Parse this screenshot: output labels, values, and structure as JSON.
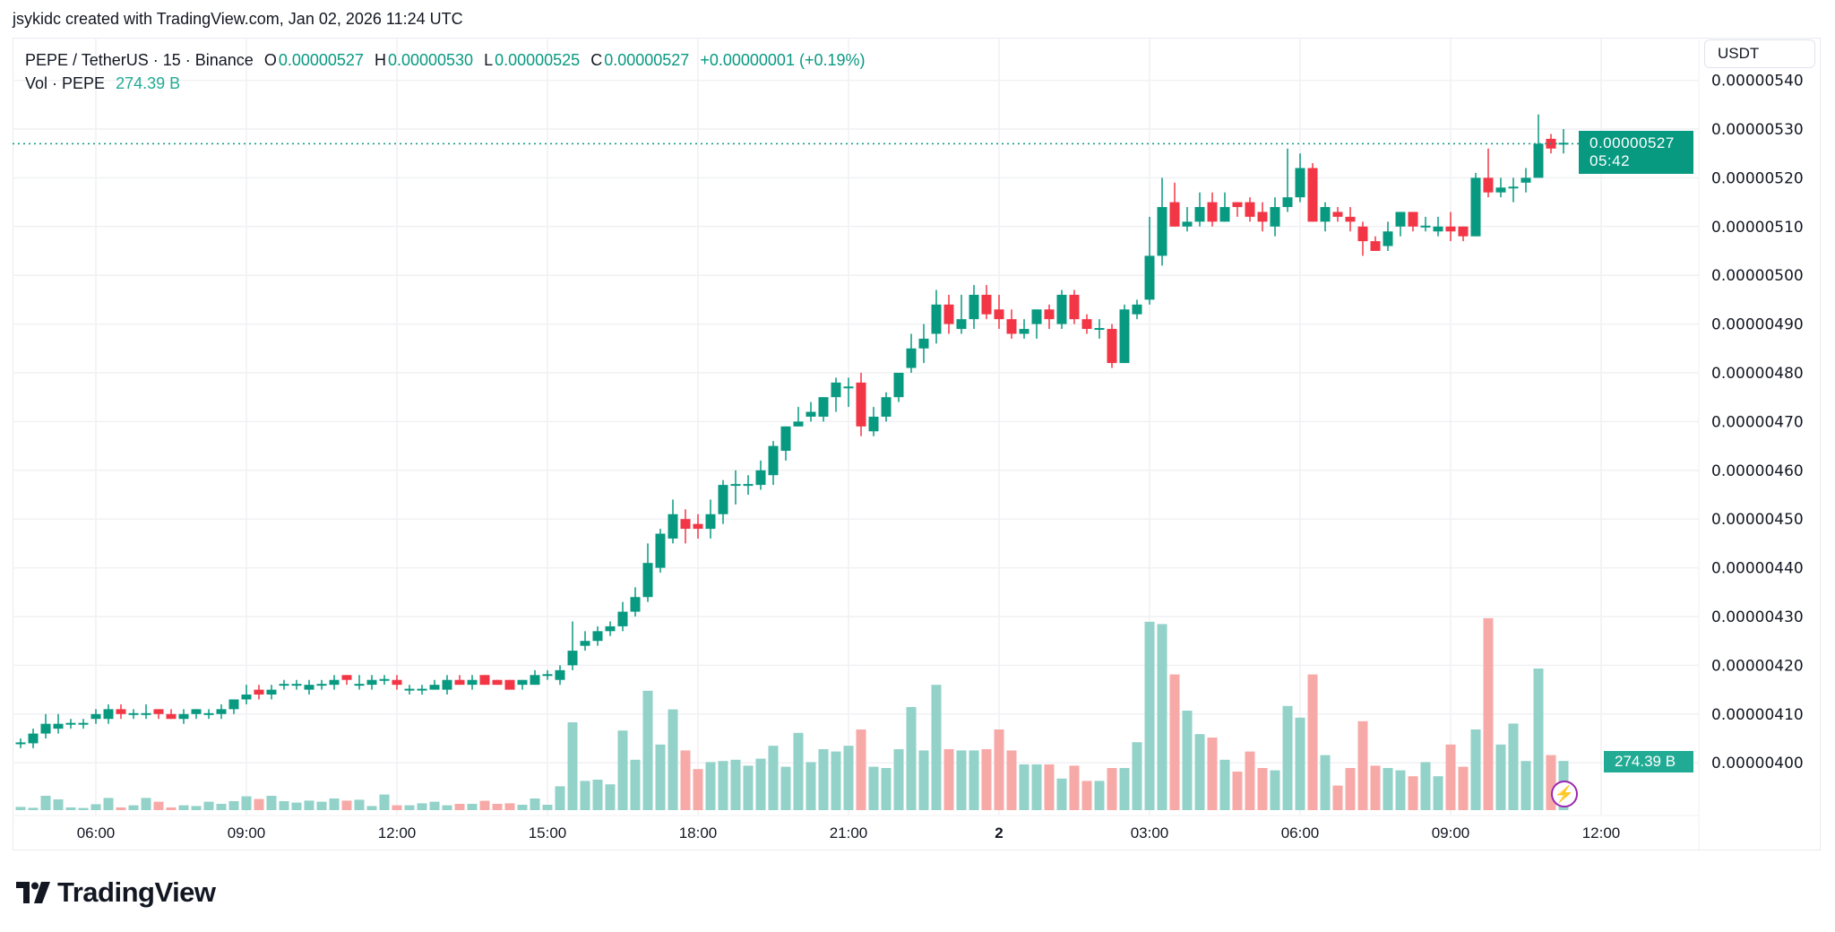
{
  "caption": "jsykidc created with TradingView.com, Jan 02, 2026 11:24 UTC",
  "legend": {
    "symbol": "PEPE / TetherUS · 15 · Binance",
    "open_label": "O",
    "open": "0.00000527",
    "high_label": "H",
    "high": "0.00000530",
    "low_label": "L",
    "low": "0.00000525",
    "close_label": "C",
    "close": "0.00000527",
    "change": "+0.00000001 (+0.19%)",
    "vol_label": "Vol · PEPE",
    "vol_value": "274.39 B"
  },
  "currency_button": "USDT",
  "last_price_label": {
    "price": "0.00000527",
    "countdown": "05:42"
  },
  "volume_label": "274.39 B",
  "brand": "TradingView",
  "colors": {
    "up": "#089981",
    "down": "#f23645",
    "vol_up": "#92d2c9",
    "vol_down": "#f7a9a7",
    "grid": "#f0f1f4",
    "accent": "#9c27b0"
  },
  "icons": {
    "replay": "lightning-icon"
  },
  "chart_data": {
    "type": "candlestick",
    "interval": "15",
    "y_ticks": [
      "0.00000540",
      "0.00000530",
      "0.00000520",
      "0.00000510",
      "0.00000500",
      "0.00000490",
      "0.00000480",
      "0.00000470",
      "0.00000460",
      "0.00000450",
      "0.00000440",
      "0.00000430",
      "0.00000420",
      "0.00000410",
      "0.00000400"
    ],
    "x_ticks": [
      {
        "label": "06:00",
        "time": "01 06:00"
      },
      {
        "label": "09:00",
        "time": "01 09:00"
      },
      {
        "label": "12:00",
        "time": "01 12:00"
      },
      {
        "label": "15:00",
        "time": "01 15:00"
      },
      {
        "label": "18:00",
        "time": "01 18:00"
      },
      {
        "label": "21:00",
        "time": "01 21:00"
      },
      {
        "label": "2",
        "time": "02 00:00",
        "bold": true
      },
      {
        "label": "03:00",
        "time": "02 03:00"
      },
      {
        "label": "06:00",
        "time": "02 06:00"
      },
      {
        "label": "09:00",
        "time": "02 09:00"
      },
      {
        "label": "12:00",
        "time": "02 12:00"
      }
    ],
    "ylim": [
      3.95e-06,
      5.4e-06
    ],
    "grid": true,
    "last_price": 5.27e-06,
    "volume_unit": "B",
    "columns": [
      "time",
      "open",
      "high",
      "low",
      "close",
      "volume"
    ],
    "candles": [
      [
        "01 04:30",
        4.04e-06,
        4.05e-06,
        4.03e-06,
        4.04e-06,
        18
      ],
      [
        "01 04:45",
        4.04e-06,
        4.07e-06,
        4.03e-06,
        4.06e-06,
        13
      ],
      [
        "01 05:00",
        4.06e-06,
        4.1e-06,
        4.05e-06,
        4.08e-06,
        80
      ],
      [
        "01 05:15",
        4.07e-06,
        4.1e-06,
        4.06e-06,
        4.08e-06,
        60
      ],
      [
        "01 05:30",
        4.08e-06,
        4.09e-06,
        4.07e-06,
        4.08e-06,
        15
      ],
      [
        "01 05:45",
        4.08e-06,
        4.09e-06,
        4.07e-06,
        4.08e-06,
        12
      ],
      [
        "01 06:00",
        4.09e-06,
        4.11e-06,
        4.08e-06,
        4.1e-06,
        33
      ],
      [
        "01 06:15",
        4.09e-06,
        4.12e-06,
        4.08e-06,
        4.11e-06,
        68
      ],
      [
        "01 06:30",
        4.11e-06,
        4.12e-06,
        4.09e-06,
        4.1e-06,
        15
      ],
      [
        "01 06:45",
        4.1e-06,
        4.11e-06,
        4.09e-06,
        4.1e-06,
        27
      ],
      [
        "01 07:00",
        4.1e-06,
        4.12e-06,
        4.09e-06,
        4.1e-06,
        68
      ],
      [
        "01 07:15",
        4.11e-06,
        4.11e-06,
        4.09e-06,
        4.1e-06,
        47
      ],
      [
        "01 07:30",
        4.1e-06,
        4.11e-06,
        4.09e-06,
        4.09e-06,
        15
      ],
      [
        "01 07:45",
        4.09e-06,
        4.11e-06,
        4.08e-06,
        4.1e-06,
        27
      ],
      [
        "01 08:00",
        4.1e-06,
        4.11e-06,
        4.09e-06,
        4.11e-06,
        23
      ],
      [
        "01 08:15",
        4.1e-06,
        4.11e-06,
        4.09e-06,
        4.1e-06,
        47
      ],
      [
        "01 08:30",
        4.1e-06,
        4.12e-06,
        4.09e-06,
        4.11e-06,
        35
      ],
      [
        "01 08:45",
        4.11e-06,
        4.13e-06,
        4.1e-06,
        4.13e-06,
        50
      ],
      [
        "01 09:00",
        4.13e-06,
        4.16e-06,
        4.12e-06,
        4.14e-06,
        77
      ],
      [
        "01 09:15",
        4.15e-06,
        4.16e-06,
        4.13e-06,
        4.14e-06,
        62
      ],
      [
        "01 09:30",
        4.14e-06,
        4.16e-06,
        4.13e-06,
        4.15e-06,
        80
      ],
      [
        "01 09:45",
        4.16e-06,
        4.17e-06,
        4.15e-06,
        4.16e-06,
        50
      ],
      [
        "01 10:00",
        4.16e-06,
        4.17e-06,
        4.15e-06,
        4.16e-06,
        42
      ],
      [
        "01 10:15",
        4.15e-06,
        4.17e-06,
        4.14e-06,
        4.16e-06,
        53
      ],
      [
        "01 10:30",
        4.16e-06,
        4.17e-06,
        4.15e-06,
        4.16e-06,
        47
      ],
      [
        "01 10:45",
        4.16e-06,
        4.18e-06,
        4.15e-06,
        4.17e-06,
        65
      ],
      [
        "01 11:00",
        4.18e-06,
        4.18e-06,
        4.16e-06,
        4.17e-06,
        53
      ],
      [
        "01 11:15",
        4.16e-06,
        4.18e-06,
        4.15e-06,
        4.16e-06,
        58
      ],
      [
        "01 11:30",
        4.16e-06,
        4.18e-06,
        4.15e-06,
        4.17e-06,
        23
      ],
      [
        "01 11:45",
        4.17e-06,
        4.18e-06,
        4.16e-06,
        4.17e-06,
        87
      ],
      [
        "01 12:00",
        4.17e-06,
        4.18e-06,
        4.15e-06,
        4.16e-06,
        27
      ],
      [
        "01 12:15",
        4.15e-06,
        4.16e-06,
        4.14e-06,
        4.15e-06,
        27
      ],
      [
        "01 12:30",
        4.15e-06,
        4.16e-06,
        4.14e-06,
        4.15e-06,
        38
      ],
      [
        "01 12:45",
        4.15e-06,
        4.17e-06,
        4.15e-06,
        4.16e-06,
        47
      ],
      [
        "01 13:00",
        4.15e-06,
        4.18e-06,
        4.14e-06,
        4.17e-06,
        27
      ],
      [
        "01 13:15",
        4.17e-06,
        4.18e-06,
        4.16e-06,
        4.16e-06,
        35
      ],
      [
        "01 13:30",
        4.16e-06,
        4.18e-06,
        4.15e-06,
        4.17e-06,
        35
      ],
      [
        "01 13:45",
        4.18e-06,
        4.18e-06,
        4.16e-06,
        4.16e-06,
        52
      ],
      [
        "01 14:00",
        4.17e-06,
        4.17e-06,
        4.16e-06,
        4.16e-06,
        35
      ],
      [
        "01 14:15",
        4.17e-06,
        4.17e-06,
        4.15e-06,
        4.15e-06,
        38
      ],
      [
        "01 14:30",
        4.16e-06,
        4.17e-06,
        4.15e-06,
        4.17e-06,
        30
      ],
      [
        "01 14:45",
        4.16e-06,
        4.19e-06,
        4.16e-06,
        4.18e-06,
        65
      ],
      [
        "01 15:00",
        4.18e-06,
        4.19e-06,
        4.17e-06,
        4.18e-06,
        30
      ],
      [
        "01 15:15",
        4.17e-06,
        4.2e-06,
        4.16e-06,
        4.19e-06,
        133
      ],
      [
        "01 15:30",
        4.2e-06,
        4.29e-06,
        4.19e-06,
        4.23e-06,
        490
      ],
      [
        "01 15:45",
        4.24e-06,
        4.27e-06,
        4.23e-06,
        4.25e-06,
        163
      ],
      [
        "01 16:00",
        4.25e-06,
        4.28e-06,
        4.24e-06,
        4.27e-06,
        170
      ],
      [
        "01 16:15",
        4.27e-06,
        4.29e-06,
        4.26e-06,
        4.28e-06,
        144
      ],
      [
        "01 16:30",
        4.28e-06,
        4.33e-06,
        4.27e-06,
        4.31e-06,
        444
      ],
      [
        "01 16:45",
        4.31e-06,
        4.36e-06,
        4.3e-06,
        4.34e-06,
        281
      ],
      [
        "01 17:00",
        4.34e-06,
        4.45e-06,
        4.33e-06,
        4.41e-06,
        666
      ],
      [
        "01 17:15",
        4.4e-06,
        4.48e-06,
        4.39e-06,
        4.47e-06,
        366
      ],
      [
        "01 17:30",
        4.46e-06,
        4.54e-06,
        4.45e-06,
        4.51e-06,
        562
      ],
      [
        "01 17:45",
        4.5e-06,
        4.52e-06,
        4.45e-06,
        4.48e-06,
        333
      ],
      [
        "01 18:00",
        4.49e-06,
        4.51e-06,
        4.46e-06,
        4.48e-06,
        229
      ],
      [
        "01 18:15",
        4.48e-06,
        4.54e-06,
        4.46e-06,
        4.51e-06,
        268
      ],
      [
        "01 18:30",
        4.51e-06,
        4.58e-06,
        4.49e-06,
        4.57e-06,
        274
      ],
      [
        "01 18:45",
        4.57e-06,
        4.6e-06,
        4.53e-06,
        4.57e-06,
        281
      ],
      [
        "01 19:00",
        4.57e-06,
        4.59e-06,
        4.55e-06,
        4.57e-06,
        248
      ],
      [
        "01 19:15",
        4.57e-06,
        4.62e-06,
        4.56e-06,
        4.6e-06,
        287
      ],
      [
        "01 19:30",
        4.59e-06,
        4.66e-06,
        4.57e-06,
        4.65e-06,
        359
      ],
      [
        "01 19:45",
        4.64e-06,
        4.69e-06,
        4.62e-06,
        4.69e-06,
        242
      ],
      [
        "01 20:00",
        4.69e-06,
        4.73e-06,
        4.69e-06,
        4.7e-06,
        431
      ],
      [
        "01 20:15",
        4.71e-06,
        4.74e-06,
        4.7e-06,
        4.72e-06,
        268
      ],
      [
        "01 20:30",
        4.71e-06,
        4.75e-06,
        4.7e-06,
        4.75e-06,
        340
      ],
      [
        "01 20:45",
        4.75e-06,
        4.79e-06,
        4.72e-06,
        4.78e-06,
        327
      ],
      [
        "01 21:00",
        4.77e-06,
        4.79e-06,
        4.73e-06,
        4.77e-06,
        359
      ],
      [
        "01 21:15",
        4.78e-06,
        4.8e-06,
        4.67e-06,
        4.69e-06,
        450
      ],
      [
        "01 21:30",
        4.68e-06,
        4.73e-06,
        4.67e-06,
        4.71e-06,
        242
      ],
      [
        "01 21:45",
        4.71e-06,
        4.76e-06,
        4.7e-06,
        4.75e-06,
        235
      ],
      [
        "01 22:00",
        4.75e-06,
        4.8e-06,
        4.74e-06,
        4.8e-06,
        340
      ],
      [
        "01 22:15",
        4.81e-06,
        4.88e-06,
        4.8e-06,
        4.85e-06,
        575
      ],
      [
        "01 22:30",
        4.85e-06,
        4.9e-06,
        4.82e-06,
        4.87e-06,
        333
      ],
      [
        "01 22:45",
        4.88e-06,
        4.97e-06,
        4.86e-06,
        4.94e-06,
        699
      ],
      [
        "01 23:00",
        4.94e-06,
        4.96e-06,
        4.88e-06,
        4.9e-06,
        340
      ],
      [
        "01 23:15",
        4.89e-06,
        4.96e-06,
        4.88e-06,
        4.91e-06,
        333
      ],
      [
        "01 23:30",
        4.91e-06,
        4.98e-06,
        4.89e-06,
        4.96e-06,
        333
      ],
      [
        "01 23:45",
        4.96e-06,
        4.98e-06,
        4.91e-06,
        4.92e-06,
        340
      ],
      [
        "02 00:00",
        4.93e-06,
        4.96e-06,
        4.89e-06,
        4.91e-06,
        450
      ],
      [
        "02 00:15",
        4.91e-06,
        4.93e-06,
        4.87e-06,
        4.88e-06,
        333
      ],
      [
        "02 00:30",
        4.88e-06,
        4.91e-06,
        4.87e-06,
        4.89e-06,
        255
      ],
      [
        "02 00:45",
        4.9e-06,
        4.93e-06,
        4.87e-06,
        4.93e-06,
        255
      ],
      [
        "02 01:00",
        4.93e-06,
        4.94e-06,
        4.89e-06,
        4.91e-06,
        255
      ],
      [
        "02 01:15",
        4.9e-06,
        4.97e-06,
        4.89e-06,
        4.96e-06,
        176
      ],
      [
        "02 01:30",
        4.96e-06,
        4.97e-06,
        4.9e-06,
        4.91e-06,
        248
      ],
      [
        "02 01:45",
        4.91e-06,
        4.92e-06,
        4.88e-06,
        4.89e-06,
        163
      ],
      [
        "02 02:00",
        4.89e-06,
        4.91e-06,
        4.87e-06,
        4.89e-06,
        163
      ],
      [
        "02 02:15",
        4.89e-06,
        4.9e-06,
        4.81e-06,
        4.82e-06,
        235
      ],
      [
        "02 02:30",
        4.82e-06,
        4.94e-06,
        4.82e-06,
        4.93e-06,
        235
      ],
      [
        "02 02:45",
        4.92e-06,
        4.95e-06,
        4.91e-06,
        4.94e-06,
        379
      ],
      [
        "02 03:00",
        4.95e-06,
        5.12e-06,
        4.94e-06,
        5.04e-06,
        1051
      ],
      [
        "02 03:15",
        5.04e-06,
        5.2e-06,
        5.02e-06,
        5.14e-06,
        1038
      ],
      [
        "02 03:30",
        5.15e-06,
        5.19e-06,
        5.1e-06,
        5.1e-06,
        757
      ],
      [
        "02 03:45",
        5.1e-06,
        5.14e-06,
        5.09e-06,
        5.11e-06,
        555
      ],
      [
        "02 04:00",
        5.11e-06,
        5.17e-06,
        5.1e-06,
        5.14e-06,
        424
      ],
      [
        "02 04:15",
        5.15e-06,
        5.17e-06,
        5.1e-06,
        5.11e-06,
        405
      ],
      [
        "02 04:30",
        5.11e-06,
        5.17e-06,
        5.11e-06,
        5.14e-06,
        281
      ],
      [
        "02 04:45",
        5.15e-06,
        5.15e-06,
        5.12e-06,
        5.14e-06,
        215
      ],
      [
        "02 05:00",
        5.15e-06,
        5.16e-06,
        5.11e-06,
        5.12e-06,
        327
      ],
      [
        "02 05:15",
        5.13e-06,
        5.15e-06,
        5.09e-06,
        5.11e-06,
        235
      ],
      [
        "02 05:30",
        5.1e-06,
        5.16e-06,
        5.08e-06,
        5.14e-06,
        222
      ],
      [
        "02 05:45",
        5.14e-06,
        5.26e-06,
        5.13e-06,
        5.16e-06,
        581
      ],
      [
        "02 06:00",
        5.16e-06,
        5.25e-06,
        5.15e-06,
        5.22e-06,
        516
      ],
      [
        "02 06:15",
        5.22e-06,
        5.23e-06,
        5.11e-06,
        5.11e-06,
        757
      ],
      [
        "02 06:30",
        5.11e-06,
        5.15e-06,
        5.09e-06,
        5.14e-06,
        307
      ],
      [
        "02 06:45",
        5.13e-06,
        5.14e-06,
        5.11e-06,
        5.12e-06,
        137
      ],
      [
        "02 07:00",
        5.12e-06,
        5.14e-06,
        5.09e-06,
        5.11e-06,
        235
      ],
      [
        "02 07:15",
        5.1e-06,
        5.11e-06,
        5.04e-06,
        5.07e-06,
        496
      ],
      [
        "02 07:30",
        5.07e-06,
        5.08e-06,
        5.05e-06,
        5.05e-06,
        248
      ],
      [
        "02 07:45",
        5.06e-06,
        5.11e-06,
        5.05e-06,
        5.09e-06,
        235
      ],
      [
        "02 08:00",
        5.1e-06,
        5.13e-06,
        5.08e-06,
        5.13e-06,
        222
      ],
      [
        "02 08:15",
        5.13e-06,
        5.13e-06,
        5.09e-06,
        5.1e-06,
        189
      ],
      [
        "02 08:30",
        5.1e-06,
        5.12e-06,
        5.09e-06,
        5.1e-06,
        268
      ],
      [
        "02 08:45",
        5.09e-06,
        5.12e-06,
        5.08e-06,
        5.1e-06,
        189
      ],
      [
        "02 09:00",
        5.1e-06,
        5.13e-06,
        5.07e-06,
        5.09e-06,
        366
      ],
      [
        "02 09:15",
        5.1e-06,
        5.1e-06,
        5.07e-06,
        5.08e-06,
        242
      ],
      [
        "02 09:30",
        5.08e-06,
        5.21e-06,
        5.08e-06,
        5.2e-06,
        450
      ],
      [
        "02 09:45",
        5.2e-06,
        5.26e-06,
        5.16e-06,
        5.17e-06,
        1071
      ],
      [
        "02 10:00",
        5.17e-06,
        5.2e-06,
        5.16e-06,
        5.18e-06,
        366
      ],
      [
        "02 10:15",
        5.18e-06,
        5.2e-06,
        5.15e-06,
        5.18e-06,
        483
      ],
      [
        "02 10:30",
        5.19e-06,
        5.22e-06,
        5.17e-06,
        5.2e-06,
        274
      ],
      [
        "02 10:45",
        5.2e-06,
        5.33e-06,
        5.2e-06,
        5.27e-06,
        790
      ],
      [
        "02 11:00",
        5.28e-06,
        5.29e-06,
        5.25e-06,
        5.26e-06,
        307
      ],
      [
        "02 11:15",
        5.27e-06,
        5.3e-06,
        5.25e-06,
        5.27e-06,
        274.39
      ]
    ]
  }
}
